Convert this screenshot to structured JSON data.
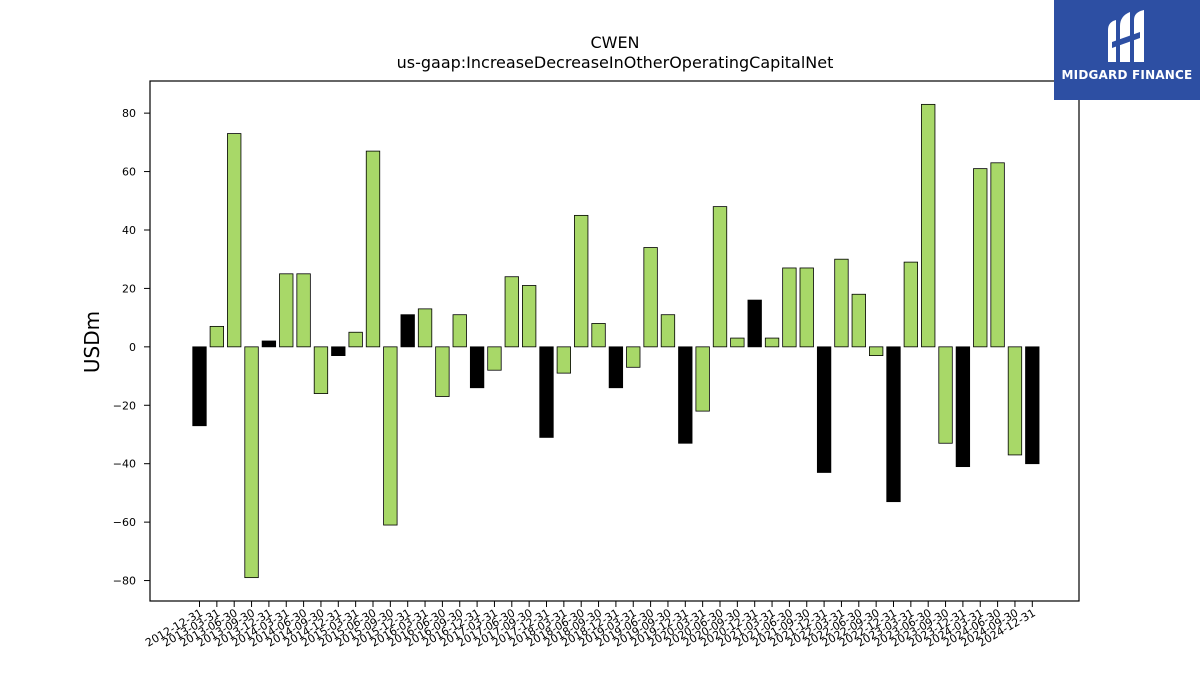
{
  "chart_data": {
    "type": "bar",
    "title": "CWEN",
    "subtitle": "us-gaap:IncreaseDecreaseInOtherOperatingCapitalNet",
    "xlabel": "",
    "ylabel": "USDm",
    "ylim": [
      -87,
      91
    ],
    "yticks": [
      -80,
      -60,
      -40,
      -20,
      0,
      20,
      40,
      60,
      80
    ],
    "grid": false,
    "colors": {
      "positive_fill": "#a8d868",
      "highlight_fill": "#000000",
      "edge": "#000000"
    },
    "categories": [
      "2012-12-31",
      "2013-03-31",
      "2013-06-30",
      "2013-09-30",
      "2013-12-31",
      "2014-03-31",
      "2014-06-30",
      "2014-09-30",
      "2014-12-31",
      "2015-03-31",
      "2015-06-30",
      "2015-09-30",
      "2015-12-31",
      "2016-03-31",
      "2016-06-30",
      "2016-09-30",
      "2016-12-31",
      "2017-03-31",
      "2017-06-30",
      "2017-09-30",
      "2017-12-31",
      "2018-03-31",
      "2018-06-30",
      "2018-09-30",
      "2018-12-31",
      "2019-03-31",
      "2019-06-30",
      "2019-09-30",
      "2019-12-31",
      "2020-03-31",
      "2020-06-30",
      "2020-09-30",
      "2020-12-31",
      "2021-03-31",
      "2021-06-30",
      "2021-09-30",
      "2021-12-31",
      "2022-03-31",
      "2022-06-30",
      "2022-09-30",
      "2022-12-31",
      "2023-03-31",
      "2023-06-30",
      "2023-09-30",
      "2023-12-31",
      "2024-03-31",
      "2024-06-30",
      "2024-09-30",
      "2024-12-31"
    ],
    "values": [
      -27,
      7,
      73,
      -79,
      2,
      25,
      25,
      -16,
      -3,
      5,
      67,
      -61,
      11,
      13,
      -17,
      11,
      -14,
      -8,
      24,
      21,
      -31,
      -9,
      45,
      8,
      -14,
      -7,
      34,
      11,
      -33,
      -22,
      48,
      3,
      16,
      3,
      27,
      27,
      -43,
      30,
      18,
      -3,
      -53,
      29,
      83,
      -33,
      -41,
      61,
      63,
      -37,
      -40
    ],
    "highlight": [
      true,
      false,
      false,
      false,
      true,
      false,
      false,
      false,
      true,
      false,
      false,
      false,
      true,
      false,
      false,
      false,
      true,
      false,
      false,
      false,
      true,
      false,
      false,
      false,
      true,
      false,
      false,
      false,
      true,
      false,
      false,
      false,
      true,
      false,
      false,
      false,
      true,
      false,
      false,
      false,
      true,
      false,
      false,
      false,
      true,
      false,
      false,
      false,
      true
    ]
  },
  "logo": {
    "text": "MIDGARD FINANCE",
    "background": "#2d4fa3"
  }
}
